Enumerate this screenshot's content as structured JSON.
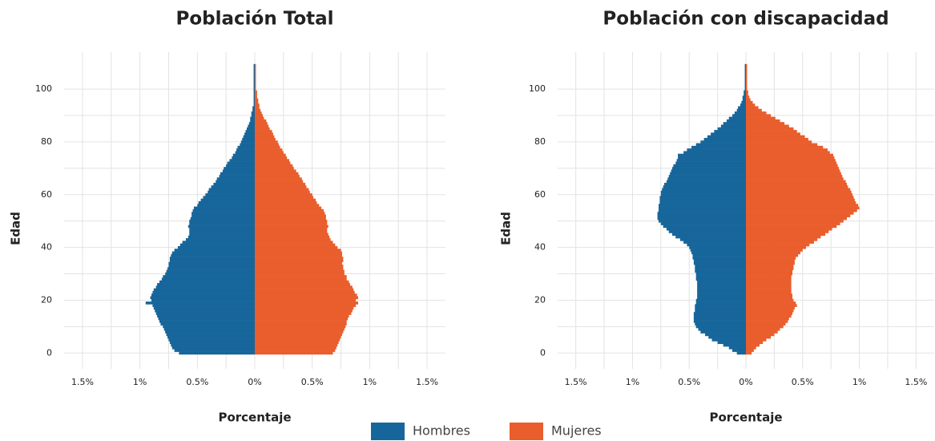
{
  "chart_data": [
    {
      "type": "pyramid",
      "title": "Población Total",
      "xlabel": "Porcentaje",
      "ylabel": "Edad",
      "xlim": [
        -1.66,
        1.66
      ],
      "ylim": [
        -6,
        114
      ],
      "xticks": [
        {
          "value": -1.5,
          "label": "1.5%"
        },
        {
          "value": -1,
          "label": "1%"
        },
        {
          "value": -0.5,
          "label": "0.5%"
        },
        {
          "value": 0,
          "label": "0%"
        },
        {
          "value": 0.5,
          "label": "0.5%"
        },
        {
          "value": 1,
          "label": "1%"
        },
        {
          "value": 1.5,
          "label": "1.5%"
        }
      ],
      "yticks": [
        0,
        20,
        40,
        60,
        80,
        100
      ],
      "grid": true,
      "y": [
        0,
        1,
        2,
        3,
        4,
        5,
        6,
        7,
        8,
        9,
        10,
        11,
        12,
        13,
        14,
        15,
        16,
        17,
        18,
        19,
        20,
        21,
        22,
        23,
        24,
        25,
        26,
        27,
        28,
        29,
        30,
        31,
        32,
        33,
        34,
        35,
        36,
        37,
        38,
        39,
        40,
        41,
        42,
        43,
        44,
        45,
        46,
        47,
        48,
        49,
        50,
        51,
        52,
        53,
        54,
        55,
        56,
        57,
        58,
        59,
        60,
        61,
        62,
        63,
        64,
        65,
        66,
        67,
        68,
        69,
        70,
        71,
        72,
        73,
        74,
        75,
        76,
        77,
        78,
        79,
        80,
        81,
        82,
        83,
        84,
        85,
        86,
        87,
        88,
        89,
        90,
        91,
        92,
        93,
        94,
        95,
        96,
        97,
        98,
        99,
        100,
        101,
        102,
        103,
        104,
        105,
        106,
        107,
        108,
        109
      ],
      "series": [
        {
          "name": "Hombres",
          "color": "#17669b",
          "values": [
            -0.66,
            -0.7,
            -0.72,
            -0.73,
            -0.74,
            -0.75,
            -0.76,
            -0.77,
            -0.78,
            -0.79,
            -0.8,
            -0.82,
            -0.83,
            -0.84,
            -0.85,
            -0.86,
            -0.87,
            -0.88,
            -0.89,
            -0.95,
            -0.9,
            -0.91,
            -0.9,
            -0.89,
            -0.88,
            -0.86,
            -0.85,
            -0.83,
            -0.81,
            -0.8,
            -0.78,
            -0.77,
            -0.76,
            -0.75,
            -0.75,
            -0.74,
            -0.74,
            -0.73,
            -0.72,
            -0.7,
            -0.67,
            -0.65,
            -0.63,
            -0.6,
            -0.58,
            -0.57,
            -0.57,
            -0.57,
            -0.58,
            -0.57,
            -0.57,
            -0.56,
            -0.55,
            -0.55,
            -0.54,
            -0.53,
            -0.5,
            -0.49,
            -0.47,
            -0.45,
            -0.43,
            -0.41,
            -0.4,
            -0.38,
            -0.36,
            -0.34,
            -0.33,
            -0.31,
            -0.3,
            -0.28,
            -0.27,
            -0.25,
            -0.24,
            -0.22,
            -0.2,
            -0.19,
            -0.17,
            -0.16,
            -0.15,
            -0.13,
            -0.12,
            -0.11,
            -0.1,
            -0.09,
            -0.08,
            -0.07,
            -0.06,
            -0.05,
            -0.04,
            -0.04,
            -0.03,
            -0.03,
            -0.02,
            -0.02,
            -0.01,
            -0.01,
            -0.01,
            -0.01,
            -0.01,
            -0.01,
            -0.01,
            -0.01,
            -0.01,
            -0.01,
            -0.01,
            -0.01,
            -0.01,
            -0.01,
            -0.01,
            -0.01
          ]
        },
        {
          "name": "Mujeres",
          "color": "#e95e2c",
          "values": [
            0.68,
            0.7,
            0.71,
            0.72,
            0.73,
            0.74,
            0.75,
            0.76,
            0.77,
            0.78,
            0.79,
            0.8,
            0.8,
            0.81,
            0.82,
            0.84,
            0.85,
            0.86,
            0.88,
            0.9,
            0.88,
            0.9,
            0.89,
            0.87,
            0.86,
            0.85,
            0.83,
            0.82,
            0.8,
            0.8,
            0.78,
            0.78,
            0.77,
            0.77,
            0.76,
            0.77,
            0.77,
            0.76,
            0.76,
            0.75,
            0.72,
            0.7,
            0.68,
            0.66,
            0.65,
            0.64,
            0.63,
            0.63,
            0.64,
            0.63,
            0.63,
            0.62,
            0.62,
            0.61,
            0.6,
            0.58,
            0.56,
            0.54,
            0.53,
            0.51,
            0.5,
            0.48,
            0.47,
            0.45,
            0.44,
            0.42,
            0.41,
            0.39,
            0.38,
            0.36,
            0.34,
            0.33,
            0.31,
            0.3,
            0.28,
            0.27,
            0.25,
            0.24,
            0.22,
            0.21,
            0.2,
            0.18,
            0.17,
            0.16,
            0.15,
            0.13,
            0.12,
            0.11,
            0.1,
            0.08,
            0.07,
            0.06,
            0.05,
            0.04,
            0.04,
            0.03,
            0.03,
            0.02,
            0.02,
            0.02,
            0.01,
            0.01,
            0.01,
            0.01,
            0.01,
            0.01,
            0.01,
            0.01,
            0.01,
            0.01
          ]
        }
      ]
    },
    {
      "type": "pyramid",
      "title": "Población con discapacidad",
      "xlabel": "Porcentaje",
      "ylabel": "Edad",
      "xlim": [
        -1.66,
        1.66
      ],
      "ylim": [
        -6,
        114
      ],
      "xticks": [
        {
          "value": -1.5,
          "label": "1.5%"
        },
        {
          "value": -1,
          "label": "1%"
        },
        {
          "value": -0.5,
          "label": "0.5%"
        },
        {
          "value": 0,
          "label": "0%"
        },
        {
          "value": 0.5,
          "label": "0.5%"
        },
        {
          "value": 1,
          "label": "1%"
        },
        {
          "value": 1.5,
          "label": "1.5%"
        }
      ],
      "yticks": [
        0,
        20,
        40,
        60,
        80,
        100
      ],
      "grid": true,
      "y": [
        0,
        1,
        2,
        3,
        4,
        5,
        6,
        7,
        8,
        9,
        10,
        11,
        12,
        13,
        14,
        15,
        16,
        17,
        18,
        19,
        20,
        21,
        22,
        23,
        24,
        25,
        26,
        27,
        28,
        29,
        30,
        31,
        32,
        33,
        34,
        35,
        36,
        37,
        38,
        39,
        40,
        41,
        42,
        43,
        44,
        45,
        46,
        47,
        48,
        49,
        50,
        51,
        52,
        53,
        54,
        55,
        56,
        57,
        58,
        59,
        60,
        61,
        62,
        63,
        64,
        65,
        66,
        67,
        68,
        69,
        70,
        71,
        72,
        73,
        74,
        75,
        76,
        77,
        78,
        79,
        80,
        81,
        82,
        83,
        84,
        85,
        86,
        87,
        88,
        89,
        90,
        91,
        92,
        93,
        94,
        95,
        96,
        97,
        98,
        99,
        100,
        101,
        102,
        103,
        104,
        105,
        106,
        107,
        108,
        109
      ],
      "series": [
        {
          "name": "Hombres",
          "color": "#17669b",
          "values": [
            -0.08,
            -0.12,
            -0.15,
            -0.2,
            -0.25,
            -0.3,
            -0.33,
            -0.36,
            -0.4,
            -0.42,
            -0.44,
            -0.45,
            -0.46,
            -0.46,
            -0.46,
            -0.46,
            -0.45,
            -0.45,
            -0.45,
            -0.44,
            -0.44,
            -0.43,
            -0.43,
            -0.43,
            -0.43,
            -0.43,
            -0.43,
            -0.43,
            -0.44,
            -0.44,
            -0.44,
            -0.45,
            -0.45,
            -0.45,
            -0.46,
            -0.46,
            -0.47,
            -0.47,
            -0.48,
            -0.49,
            -0.5,
            -0.52,
            -0.55,
            -0.58,
            -0.62,
            -0.65,
            -0.68,
            -0.7,
            -0.73,
            -0.75,
            -0.77,
            -0.78,
            -0.78,
            -0.78,
            -0.77,
            -0.77,
            -0.77,
            -0.76,
            -0.76,
            -0.76,
            -0.75,
            -0.75,
            -0.74,
            -0.73,
            -0.72,
            -0.7,
            -0.69,
            -0.68,
            -0.67,
            -0.66,
            -0.65,
            -0.64,
            -0.62,
            -0.61,
            -0.6,
            -0.6,
            -0.55,
            -0.52,
            -0.48,
            -0.44,
            -0.4,
            -0.37,
            -0.34,
            -0.31,
            -0.28,
            -0.25,
            -0.22,
            -0.2,
            -0.17,
            -0.15,
            -0.12,
            -0.1,
            -0.08,
            -0.07,
            -0.05,
            -0.04,
            -0.03,
            -0.03,
            -0.02,
            -0.02,
            -0.01,
            -0.01,
            -0.01,
            -0.01,
            -0.01,
            -0.01,
            -0.01,
            -0.01,
            -0.01,
            -0.01
          ]
        },
        {
          "name": "Mujeres",
          "color": "#e95e2c",
          "values": [
            0.05,
            0.07,
            0.09,
            0.12,
            0.15,
            0.18,
            0.22,
            0.25,
            0.28,
            0.3,
            0.33,
            0.35,
            0.37,
            0.38,
            0.4,
            0.41,
            0.42,
            0.43,
            0.45,
            0.44,
            0.42,
            0.41,
            0.41,
            0.4,
            0.4,
            0.4,
            0.4,
            0.4,
            0.4,
            0.4,
            0.41,
            0.41,
            0.42,
            0.42,
            0.43,
            0.43,
            0.44,
            0.46,
            0.48,
            0.5,
            0.53,
            0.56,
            0.6,
            0.63,
            0.66,
            0.7,
            0.73,
            0.76,
            0.8,
            0.83,
            0.86,
            0.89,
            0.92,
            0.95,
            0.98,
            1.0,
            0.99,
            0.97,
            0.96,
            0.95,
            0.94,
            0.93,
            0.92,
            0.9,
            0.89,
            0.88,
            0.86,
            0.85,
            0.84,
            0.83,
            0.82,
            0.81,
            0.8,
            0.79,
            0.78,
            0.77,
            0.74,
            0.72,
            0.68,
            0.63,
            0.58,
            0.55,
            0.52,
            0.48,
            0.45,
            0.42,
            0.38,
            0.34,
            0.3,
            0.26,
            0.22,
            0.18,
            0.14,
            0.11,
            0.08,
            0.06,
            0.04,
            0.03,
            0.02,
            0.02,
            0.01,
            0.01,
            0.01,
            0.01,
            0.01,
            0.01,
            0.01,
            0.01,
            0.01,
            0.01
          ]
        }
      ]
    }
  ]
}
